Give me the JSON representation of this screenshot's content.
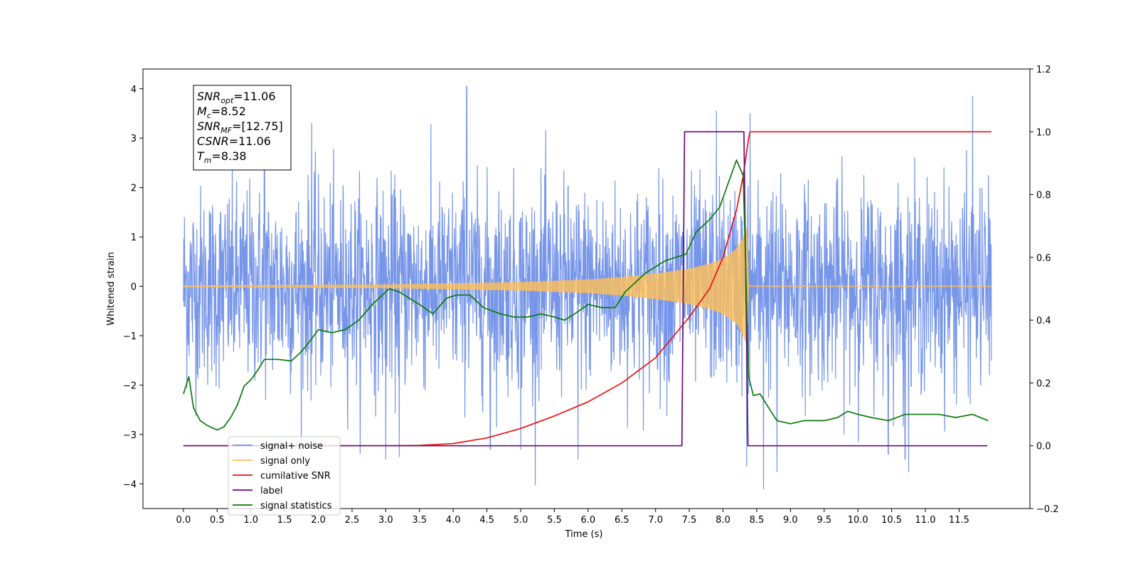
{
  "chart_data": {
    "type": "line",
    "xlabel": "Time (s)",
    "ylabel": "Whitened strain",
    "ylabel_right": "",
    "xlim": [
      -0.6,
      12.55
    ],
    "ylim": [
      -4.5,
      4.4
    ],
    "ylim_right": [
      -0.2,
      1.2
    ],
    "x_ticks": [
      0.0,
      0.5,
      1.0,
      1.5,
      2.0,
      2.5,
      3.0,
      3.5,
      4.0,
      4.5,
      5.0,
      5.5,
      6.0,
      6.5,
      7.0,
      7.5,
      8.0,
      8.5,
      9.0,
      9.5,
      10.0,
      10.5,
      11.0,
      11.5
    ],
    "x_tick_labels": [
      "0.0",
      "0.5",
      "1.0",
      "1.5",
      "2.0",
      "2.5",
      "3.0",
      "3.5",
      "4.0",
      "4.5",
      "5.0",
      "5.5",
      "6.0",
      "6.5",
      "7.0",
      "7.5",
      "8.0",
      "8.5",
      "9.0",
      "9.5",
      "10.0",
      "10.5",
      "11.0",
      "11.5"
    ],
    "y_ticks": [
      -4,
      -3,
      -2,
      -1,
      0,
      1,
      2,
      3,
      4
    ],
    "y_tick_labels": [
      "−4",
      "−3",
      "−2",
      "−1",
      "0",
      "1",
      "2",
      "3",
      "4"
    ],
    "y_right_ticks": [
      -0.2,
      0.0,
      0.2,
      0.4,
      0.6,
      0.8,
      1.0,
      1.2
    ],
    "y_right_tick_labels": [
      "−0.2",
      "0.0",
      "0.2",
      "0.4",
      "0.6",
      "0.8",
      "1.0",
      "1.2"
    ],
    "grid": false,
    "legend_position": "lower-left",
    "annotation": {
      "lines": [
        {
          "main": "SNR",
          "sub": "opt",
          "value": "=11.06"
        },
        {
          "main": "M",
          "sub": "c",
          "value": "=8.52"
        },
        {
          "main": "SNR",
          "sub": "MF",
          "value": "=[12.75]"
        },
        {
          "main": "CSNR",
          "sub": "",
          "value": "=11.06"
        },
        {
          "main": "T",
          "sub": "m",
          "value": "=8.38"
        }
      ]
    },
    "series": [
      {
        "name": "signal+ noise",
        "axis": "left",
        "color": "#7090e8",
        "kind": "noise",
        "x_range": [
          0.0,
          11.98
        ],
        "noise_sigma": 1.0,
        "spikes": [
          [
            1.2,
            3.2
          ],
          [
            1.9,
            3.3
          ],
          [
            4.2,
            4.05
          ],
          [
            7.9,
            3.55
          ],
          [
            8.4,
            3.5
          ],
          [
            11.7,
            3.85
          ],
          [
            8.35,
            -3.65
          ],
          [
            8.6,
            -4.1
          ],
          [
            8.8,
            -3.75
          ],
          [
            5.85,
            -3.5
          ],
          [
            4.55,
            -3.3
          ],
          [
            5.0,
            -3.3
          ],
          [
            3.0,
            -3.5
          ],
          [
            3.2,
            -3.45
          ],
          [
            10.7,
            -3.5
          ],
          [
            10.45,
            -3.4
          ]
        ]
      },
      {
        "name": "signal only",
        "axis": "left",
        "color": "#ffbf55",
        "kind": "chirp",
        "x_range": [
          0.0,
          11.98
        ],
        "merger_time": 8.38,
        "envelope_samples": [
          [
            0.0,
            0.01
          ],
          [
            3.0,
            0.03
          ],
          [
            5.0,
            0.08
          ],
          [
            6.0,
            0.13
          ],
          [
            6.5,
            0.18
          ],
          [
            7.0,
            0.25
          ],
          [
            7.5,
            0.35
          ],
          [
            7.8,
            0.45
          ],
          [
            8.0,
            0.55
          ],
          [
            8.2,
            0.75
          ],
          [
            8.3,
            1.0
          ],
          [
            8.36,
            1.2
          ],
          [
            8.38,
            0.0
          ]
        ]
      },
      {
        "name": "cumilative SNR",
        "axis": "right",
        "color": "#ee1111",
        "x": [
          0.0,
          3.0,
          3.5,
          4.0,
          4.5,
          5.0,
          5.5,
          6.0,
          6.5,
          7.0,
          7.5,
          7.8,
          8.0,
          8.2,
          8.3,
          8.38,
          8.4,
          11.98
        ],
        "y": [
          0.0,
          0.0,
          0.001,
          0.007,
          0.025,
          0.055,
          0.095,
          0.14,
          0.2,
          0.28,
          0.41,
          0.5,
          0.6,
          0.75,
          0.86,
          0.98,
          1.0,
          1.0
        ]
      },
      {
        "name": "label",
        "axis": "right",
        "color": "#6a0a7a",
        "x": [
          0.0,
          7.39,
          7.43,
          8.31,
          8.37,
          11.92
        ],
        "y": [
          0.0,
          0.0,
          1.0,
          1.0,
          0.0,
          0.0
        ]
      },
      {
        "name": "signal statistics",
        "axis": "right",
        "color": "#0a7a0a",
        "x": [
          0.0,
          0.08,
          0.15,
          0.25,
          0.35,
          0.5,
          0.6,
          0.7,
          0.8,
          0.9,
          1.0,
          1.1,
          1.2,
          1.4,
          1.6,
          1.75,
          1.9,
          2.0,
          2.2,
          2.4,
          2.6,
          2.8,
          2.95,
          3.05,
          3.2,
          3.35,
          3.5,
          3.7,
          3.9,
          4.05,
          4.25,
          4.45,
          4.7,
          4.9,
          5.1,
          5.3,
          5.5,
          5.65,
          5.8,
          6.0,
          6.2,
          6.4,
          6.55,
          6.7,
          6.85,
          7.0,
          7.15,
          7.3,
          7.45,
          7.6,
          7.8,
          7.95,
          8.05,
          8.15,
          8.2,
          8.3,
          8.38,
          8.45,
          8.55,
          8.65,
          8.8,
          9.0,
          9.2,
          9.5,
          9.7,
          9.85,
          10.0,
          10.2,
          10.45,
          10.7,
          10.95,
          11.2,
          11.45,
          11.7,
          11.93
        ],
        "y": [
          0.165,
          0.22,
          0.12,
          0.08,
          0.065,
          0.05,
          0.06,
          0.09,
          0.13,
          0.19,
          0.21,
          0.24,
          0.275,
          0.275,
          0.27,
          0.3,
          0.34,
          0.37,
          0.36,
          0.37,
          0.4,
          0.45,
          0.48,
          0.5,
          0.49,
          0.47,
          0.45,
          0.42,
          0.47,
          0.48,
          0.48,
          0.44,
          0.42,
          0.41,
          0.41,
          0.42,
          0.41,
          0.4,
          0.42,
          0.45,
          0.44,
          0.44,
          0.49,
          0.52,
          0.55,
          0.57,
          0.59,
          0.6,
          0.61,
          0.68,
          0.72,
          0.76,
          0.82,
          0.88,
          0.91,
          0.86,
          0.22,
          0.16,
          0.165,
          0.13,
          0.08,
          0.07,
          0.08,
          0.08,
          0.09,
          0.11,
          0.1,
          0.09,
          0.08,
          0.1,
          0.1,
          0.1,
          0.09,
          0.1,
          0.08
        ]
      }
    ]
  }
}
